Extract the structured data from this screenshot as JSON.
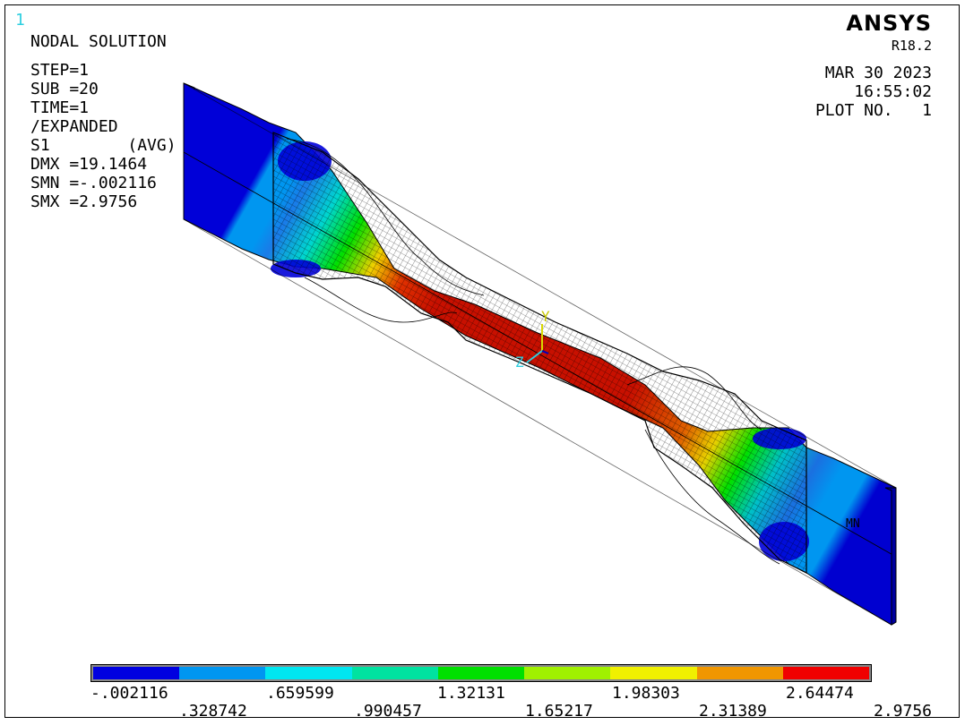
{
  "window": {
    "number": "1"
  },
  "brand": {
    "name": "ANSYS",
    "version": "R18.2"
  },
  "plot_title": "NODAL SOLUTION",
  "solution_info": {
    "step": "STEP=1",
    "sub": "SUB =20",
    "time": "TIME=1",
    "expanded": "/EXPANDED",
    "result": "S1        (AVG)",
    "dmx": "DMX =19.1464",
    "smn": "SMN =-.002116",
    "smx": "SMX =2.9756"
  },
  "plot_info": {
    "date": "MAR 30 2023",
    "time": "16:55:02",
    "plot_no": "PLOT NO.   1"
  },
  "triad": {
    "y_label": "Y",
    "z_label": "Z"
  },
  "min_marker": "MN",
  "legend": {
    "colors": [
      "#0000e0",
      "#0096f0",
      "#00e6f0",
      "#00e2a0",
      "#00e000",
      "#a0f000",
      "#f0f000",
      "#f09600",
      "#f00000"
    ],
    "values": [
      "-.002116",
      ".328742",
      ".659599",
      ".990457",
      "1.32131",
      "1.65217",
      "1.98303",
      "2.31389",
      "2.64474",
      "2.9756"
    ]
  }
}
